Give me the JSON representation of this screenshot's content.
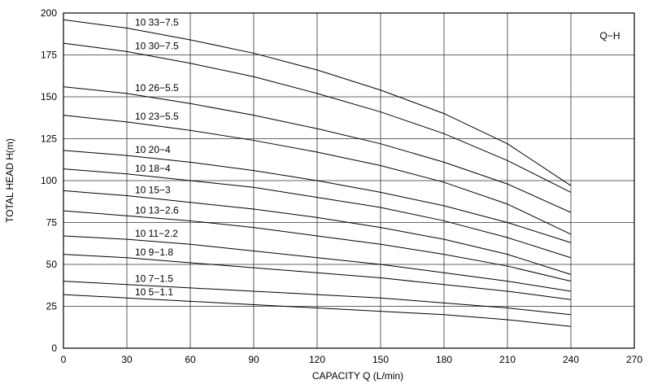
{
  "chart_data": {
    "type": "line",
    "annotation": "Q−H",
    "xlabel": "CAPACITY  Q (L/min)",
    "ylabel": "TOTAL HEAD  H(m)",
    "x": [
      0,
      30,
      60,
      90,
      120,
      150,
      180,
      210,
      240
    ],
    "xlim": [
      0,
      270
    ],
    "xticks": [
      0,
      30,
      60,
      90,
      120,
      150,
      180,
      210,
      240,
      270
    ],
    "ylim": [
      0,
      200
    ],
    "yticks": [
      0,
      25,
      50,
      75,
      100,
      125,
      150,
      175,
      200
    ],
    "grid": true,
    "series": [
      {
        "name": "10 33−7.5",
        "color": "#000000",
        "values": [
          196,
          191,
          184,
          176,
          166,
          154,
          140,
          122,
          97
        ]
      },
      {
        "name": "10 30−7.5",
        "color": "#000000",
        "values": [
          182,
          177,
          170,
          162,
          152,
          141,
          128,
          112,
          93
        ]
      },
      {
        "name": "10 26−5.5",
        "color": "#000000",
        "values": [
          156,
          152,
          146,
          139,
          131,
          122,
          111,
          98,
          81
        ]
      },
      {
        "name": "10 23−5.5",
        "color": "#000000",
        "values": [
          139,
          135,
          130,
          124,
          117,
          109,
          99,
          86,
          68
        ]
      },
      {
        "name": "10 20−4",
        "color": "#000000",
        "values": [
          118,
          115,
          111,
          106,
          100,
          93,
          85,
          75,
          63
        ]
      },
      {
        "name": "10 18−4",
        "color": "#000000",
        "values": [
          107,
          104,
          100,
          96,
          90,
          84,
          76,
          66,
          54
        ]
      },
      {
        "name": "10 15−3",
        "color": "#000000",
        "values": [
          94,
          91,
          87,
          83,
          78,
          72,
          65,
          56,
          44
        ]
      },
      {
        "name": "10 13−2.6",
        "color": "#000000",
        "values": [
          82,
          79,
          76,
          72,
          67,
          62,
          56,
          49,
          40
        ]
      },
      {
        "name": "10 11−2.2",
        "color": "#000000",
        "values": [
          67,
          65,
          62,
          58,
          54,
          50,
          45,
          40,
          34
        ]
      },
      {
        "name": "10 9−1.8",
        "color": "#000000",
        "values": [
          56,
          54,
          51,
          48,
          45,
          42,
          38,
          34,
          29
        ]
      },
      {
        "name": "10 7−1.5",
        "color": "#000000",
        "values": [
          40,
          38,
          36,
          34,
          32,
          30,
          27,
          24,
          20
        ]
      },
      {
        "name": "10 5−1.1",
        "color": "#000000",
        "values": [
          32,
          30,
          28,
          26,
          24,
          22,
          20,
          17,
          13
        ]
      }
    ]
  }
}
